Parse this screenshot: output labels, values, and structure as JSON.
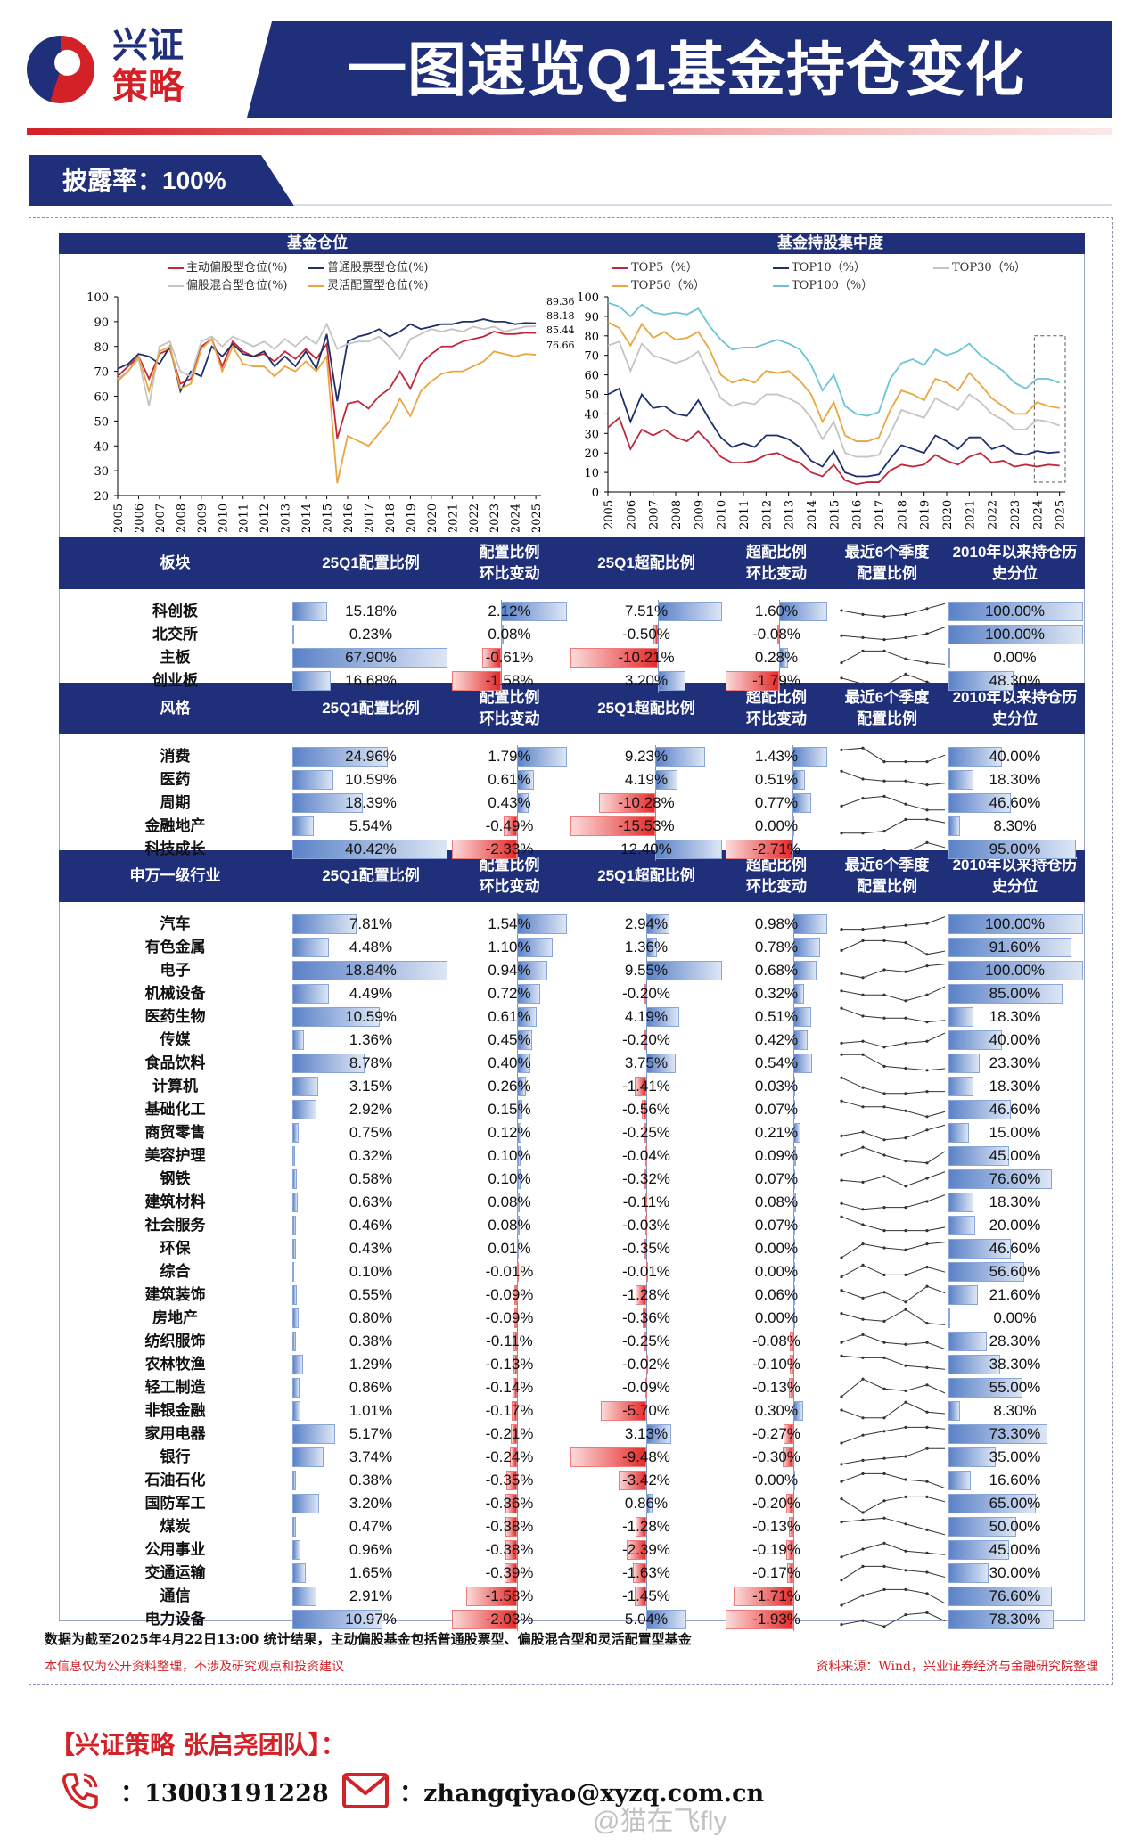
{
  "header": {
    "logo": [
      "兴证",
      "策略"
    ],
    "title": "一图速览Q1基金持仓变化",
    "disclosure": "披露率：100%"
  },
  "colors": {
    "navy": "#1f2f7a",
    "red": "#d42027",
    "pos_bar": "#5b82c8",
    "neg_bar": "#e52a2a"
  },
  "chart_data": [
    {
      "type": "line",
      "title": "基金仓位",
      "ylim": [
        20,
        100
      ],
      "yticks": [
        20,
        30,
        40,
        50,
        60,
        70,
        80,
        90,
        100
      ],
      "xticks": [
        "2005",
        "2006",
        "2007",
        "2008",
        "2009",
        "2010",
        "2011",
        "2012",
        "2013",
        "2014",
        "2015",
        "2016",
        "2017",
        "2018",
        "2019",
        "2020",
        "2021",
        "2022",
        "2023",
        "2024",
        "2025"
      ],
      "x_step": "half-year from 2005",
      "series": [
        {
          "name": "主动偏股型仓位(%)",
          "color": "#c0283a",
          "end_label": "85.44",
          "values": [
            68,
            72,
            76,
            67,
            77,
            79,
            65,
            67,
            80,
            83,
            72,
            82,
            78,
            76,
            77,
            74,
            78,
            75,
            79,
            75,
            81,
            43,
            57,
            58,
            55,
            60,
            63,
            70,
            63,
            73,
            77,
            80,
            80,
            82,
            83,
            84,
            86,
            85,
            85,
            85.5,
            85.44
          ]
        },
        {
          "name": "普通股票型仓位(%)",
          "color": "#1f2f6a",
          "end_label": "89.36",
          "values": [
            71,
            73,
            77,
            76,
            73,
            80,
            62,
            70,
            68,
            80,
            76,
            81,
            77,
            76,
            78,
            72,
            76,
            72,
            78,
            71,
            85,
            58,
            82,
            84,
            85,
            87,
            84,
            86,
            89,
            87,
            88,
            89,
            89,
            90,
            90,
            91,
            90,
            90,
            89,
            89.5,
            89.36
          ]
        },
        {
          "name": "偏股混合型仓位(%)",
          "color": "#c4c4c4",
          "end_label": "88.18",
          "values": [
            67,
            70,
            75,
            56,
            80,
            82,
            70,
            68,
            82,
            84,
            80,
            84,
            82,
            80,
            82,
            79,
            83,
            80,
            84,
            81,
            89,
            79,
            81,
            82,
            82,
            84,
            80,
            75,
            83,
            85,
            87,
            86,
            87,
            86,
            88,
            87,
            88,
            86,
            87,
            88,
            88.18
          ]
        },
        {
          "name": "灵活配置型仓位(%)",
          "color": "#e8a640",
          "end_label": "76.66",
          "values": [
            66,
            70,
            76,
            62,
            78,
            80,
            63,
            65,
            79,
            83,
            70,
            80,
            73,
            72,
            72,
            68,
            72,
            70,
            74,
            70,
            76,
            25,
            44,
            42,
            40,
            45,
            50,
            59,
            52,
            62,
            66,
            69,
            70,
            70,
            72,
            74,
            78,
            77,
            76,
            77,
            76.66
          ]
        }
      ]
    },
    {
      "type": "line",
      "title": "基金持股集中度",
      "ylim": [
        0,
        100
      ],
      "yticks": [
        0,
        10,
        20,
        30,
        40,
        50,
        60,
        70,
        80,
        90,
        100
      ],
      "xticks": [
        "2005",
        "2006",
        "2007",
        "2008",
        "2009",
        "2010",
        "2011",
        "2012",
        "2013",
        "2014",
        "2015",
        "2016",
        "2017",
        "2018",
        "2019",
        "2020",
        "2021",
        "2022",
        "2023",
        "2024",
        "2025"
      ],
      "x_step": "half-year from 2005",
      "highlight": "2024-2025",
      "series": [
        {
          "name": "TOP5（%）",
          "color": "#c0283a",
          "values": [
            33,
            38,
            22,
            32,
            29,
            32,
            28,
            26,
            31,
            25,
            18,
            15,
            15,
            16,
            19,
            20,
            17,
            15,
            10,
            8,
            14,
            6,
            4,
            5,
            5,
            11,
            14,
            13,
            14,
            19,
            16,
            14,
            18,
            20,
            15,
            16,
            13,
            14,
            13,
            14,
            13.5
          ]
        },
        {
          "name": "TOP10（%）",
          "color": "#1f2f6a",
          "values": [
            50,
            53,
            36,
            50,
            43,
            44,
            40,
            39,
            47,
            37,
            28,
            23,
            25,
            23,
            29,
            29,
            27,
            23,
            16,
            13,
            21,
            10,
            8,
            8,
            9,
            17,
            24,
            22,
            20,
            29,
            26,
            22,
            28,
            28,
            22,
            24,
            20,
            19,
            21,
            20,
            20.5
          ]
        },
        {
          "name": "TOP30（%）",
          "color": "#c4c4c4",
          "values": [
            75,
            77,
            62,
            76,
            70,
            68,
            66,
            68,
            72,
            60,
            48,
            44,
            46,
            45,
            50,
            50,
            48,
            45,
            38,
            27,
            36,
            20,
            18,
            18,
            19,
            30,
            42,
            40,
            38,
            48,
            45,
            42,
            50,
            46,
            40,
            37,
            32,
            32,
            37,
            36,
            34
          ]
        },
        {
          "name": "TOP50（%）",
          "color": "#e8a640",
          "values": [
            87,
            84,
            75,
            86,
            79,
            82,
            78,
            79,
            82,
            73,
            60,
            56,
            58,
            56,
            62,
            61,
            62,
            57,
            50,
            36,
            46,
            29,
            26,
            26,
            28,
            42,
            52,
            50,
            47,
            58,
            56,
            52,
            61,
            55,
            48,
            44,
            40,
            40,
            46,
            44,
            43
          ]
        },
        {
          "name": "TOP100（%）",
          "color": "#6cc3d6",
          "values": [
            97,
            95,
            90,
            96,
            92,
            91,
            92,
            91,
            94,
            85,
            78,
            73,
            74,
            74,
            76,
            78,
            76,
            73,
            65,
            52,
            60,
            44,
            40,
            39,
            41,
            58,
            66,
            68,
            65,
            73,
            70,
            72,
            76,
            70,
            66,
            62,
            56,
            53,
            58,
            58,
            56
          ]
        }
      ]
    }
  ],
  "columns": {
    "alloc": "25Q1配置比例",
    "alloc_chg": [
      "配置比例",
      "环比变动"
    ],
    "over": "25Q1超配比例",
    "over_chg": [
      "超配比例",
      "环比变动"
    ],
    "spark": [
      "最近6个季度",
      "配置比例"
    ],
    "pct": [
      "2010年以来持仓历",
      "史分位"
    ]
  },
  "tables": [
    {
      "head": "板块",
      "rows": [
        [
          "科创板",
          "15.18%",
          "2.12%",
          "7.51%",
          "1.60%",
          [
            5,
            3,
            2,
            3,
            6,
            9
          ],
          "100.00%"
        ],
        [
          "北交所",
          "0.23%",
          "0.08%",
          "-0.50%",
          "-0.08%",
          [
            4,
            3,
            2,
            3,
            5,
            9
          ],
          "100.00%"
        ],
        [
          "主板",
          "67.90%",
          "-0.61%",
          "-10.21%",
          "0.28%",
          [
            2,
            8,
            8,
            4,
            2,
            1
          ],
          "0.00%"
        ],
        [
          "创业板",
          "16.68%",
          "-1.58%",
          "3.20%",
          "-1.79%",
          [
            6,
            3,
            2,
            8,
            4,
            0
          ],
          "48.30%"
        ]
      ]
    },
    {
      "head": "风格",
      "rows": [
        [
          "消费",
          "24.96%",
          "1.79%",
          "9.23%",
          "1.43%",
          [
            8,
            9,
            2,
            2,
            2,
            6
          ],
          "40.00%"
        ],
        [
          "医药",
          "10.59%",
          "0.61%",
          "4.19%",
          "0.51%",
          [
            9,
            5,
            4,
            4,
            2,
            3
          ],
          "18.30%"
        ],
        [
          "周期",
          "18.39%",
          "0.43%",
          "-10.28%",
          "0.77%",
          [
            3,
            7,
            8,
            4,
            1,
            1
          ],
          "46.60%"
        ],
        [
          "金融地产",
          "5.54%",
          "-0.49%",
          "-15.53%",
          "0.00%",
          [
            1,
            1,
            2,
            8,
            8,
            6
          ],
          "8.30%"
        ],
        [
          "科技成长",
          "40.42%",
          "-2.33%",
          "12.40%",
          "-2.71%",
          [
            2,
            0,
            4,
            3,
            8,
            5
          ],
          "95.00%"
        ]
      ]
    },
    {
      "head": "申万一级行业",
      "rows": [
        [
          "汽车",
          "7.81%",
          "1.54%",
          "2.94%",
          "0.98%",
          [
            2,
            2,
            3,
            4,
            5,
            9
          ],
          "100.00%"
        ],
        [
          "有色金属",
          "4.48%",
          "1.10%",
          "1.36%",
          "0.78%",
          [
            3,
            8,
            8,
            7,
            1,
            3
          ],
          "91.60%"
        ],
        [
          "电子",
          "18.84%",
          "0.94%",
          "9.55%",
          "0.68%",
          [
            3,
            1,
            5,
            4,
            7,
            8
          ],
          "100.00%"
        ],
        [
          "机械设备",
          "4.49%",
          "0.72%",
          "-0.20%",
          "0.32%",
          [
            6,
            4,
            4,
            1,
            4,
            9
          ],
          "85.00%"
        ],
        [
          "医药生物",
          "10.59%",
          "0.61%",
          "4.19%",
          "0.51%",
          [
            9,
            5,
            4,
            4,
            2,
            3
          ],
          "18.30%"
        ],
        [
          "传媒",
          "1.36%",
          "0.45%",
          "-0.20%",
          "0.42%",
          [
            3,
            4,
            1,
            3,
            4,
            9
          ],
          "40.00%"
        ],
        [
          "食品饮料",
          "8.78%",
          "0.40%",
          "3.75%",
          "0.54%",
          [
            9,
            9,
            3,
            2,
            1,
            2
          ],
          "23.30%"
        ],
        [
          "计算机",
          "3.15%",
          "0.26%",
          "-1.41%",
          "0.03%",
          [
            9,
            4,
            1,
            1,
            2,
            2
          ],
          "18.30%"
        ],
        [
          "基础化工",
          "2.92%",
          "0.15%",
          "-0.56%",
          "0.07%",
          [
            9,
            6,
            6,
            4,
            1,
            4
          ],
          "46.60%"
        ],
        [
          "商贸零售",
          "0.75%",
          "0.12%",
          "-0.25%",
          "0.21%",
          [
            3,
            5,
            1,
            2,
            6,
            9
          ],
          "15.00%"
        ],
        [
          "美容护理",
          "0.32%",
          "0.10%",
          "-0.04%",
          "0.09%",
          [
            5,
            9,
            5,
            2,
            1,
            8
          ],
          "45.00%"
        ],
        [
          "钢铁",
          "0.58%",
          "0.10%",
          "-0.32%",
          "0.07%",
          [
            4,
            3,
            6,
            1,
            5,
            9
          ],
          "76.60%"
        ],
        [
          "建筑材料",
          "0.63%",
          "0.08%",
          "-0.11%",
          "0.08%",
          [
            4,
            1,
            2,
            2,
            5,
            9
          ],
          "18.30%"
        ],
        [
          "社会服务",
          "0.46%",
          "0.08%",
          "-0.03%",
          "0.07%",
          [
            9,
            5,
            2,
            2,
            2,
            4
          ],
          "20.00%"
        ],
        [
          "环保",
          "0.43%",
          "0.01%",
          "-0.35%",
          "0.00%",
          [
            0,
            7,
            5,
            4,
            7,
            8
          ],
          "46.60%"
        ],
        [
          "综合",
          "0.10%",
          "-0.01%",
          "-0.01%",
          "0.00%",
          [
            2,
            8,
            3,
            3,
            7,
            4
          ],
          "56.60%"
        ],
        [
          "建筑装饰",
          "0.55%",
          "-0.09%",
          "-1.28%",
          "0.06%",
          [
            7,
            3,
            6,
            1,
            9,
            5
          ],
          "21.60%"
        ],
        [
          "房地产",
          "0.80%",
          "-0.09%",
          "-0.36%",
          "0.00%",
          [
            7,
            4,
            3,
            9,
            2,
            1
          ],
          "0.00%"
        ],
        [
          "纺织服饰",
          "0.38%",
          "-0.11%",
          "-0.25%",
          "-0.08%",
          [
            4,
            8,
            4,
            3,
            4,
            0
          ],
          "28.30%"
        ],
        [
          "农林牧渔",
          "1.29%",
          "-0.13%",
          "-0.02%",
          "-0.10%",
          [
            9,
            8,
            8,
            4,
            3,
            2
          ],
          "38.30%"
        ],
        [
          "轻工制造",
          "0.86%",
          "-0.14%",
          "-0.09%",
          "-0.13%",
          [
            0,
            9,
            4,
            3,
            6,
            1
          ],
          "55.00%"
        ],
        [
          "非银金融",
          "1.01%",
          "-0.17%",
          "-5.70%",
          "0.30%",
          [
            5,
            1,
            1,
            9,
            4,
            3
          ],
          "8.30%"
        ],
        [
          "家用电器",
          "5.17%",
          "-0.21%",
          "3.13%",
          "-0.27%",
          [
            0,
            4,
            6,
            8,
            8,
            7
          ],
          "73.30%"
        ],
        [
          "银行",
          "3.74%",
          "-0.24%",
          "-9.48%",
          "-0.30%",
          [
            1,
            3,
            4,
            5,
            9,
            9
          ],
          "35.00%"
        ],
        [
          "石油石化",
          "0.38%",
          "-0.35%",
          "-3.42%",
          "0.00%",
          [
            4,
            8,
            8,
            5,
            4,
            0
          ],
          "16.60%"
        ],
        [
          "国防军工",
          "3.20%",
          "-0.36%",
          "0.86%",
          "-0.20%",
          [
            7,
            0,
            6,
            8,
            8,
            5
          ],
          "65.00%"
        ],
        [
          "煤炭",
          "0.47%",
          "-0.38%",
          "-1.28%",
          "-0.13%",
          [
            7,
            8,
            9,
            6,
            3,
            0
          ],
          "50.00%"
        ],
        [
          "公用事业",
          "0.96%",
          "-0.38%",
          "-2.39%",
          "-0.19%",
          [
            1,
            5,
            8,
            4,
            3,
            2
          ],
          "45.00%"
        ],
        [
          "交通运输",
          "1.65%",
          "-0.39%",
          "-1.63%",
          "-0.17%",
          [
            1,
            8,
            8,
            6,
            5,
            2
          ],
          "30.00%"
        ],
        [
          "通信",
          "2.91%",
          "-1.58%",
          "-1.45%",
          "-1.71%",
          [
            0,
            5,
            8,
            8,
            6,
            0
          ],
          "76.60%"
        ],
        [
          "电力设备",
          "10.97%",
          "-2.03%",
          "5.04%",
          "-1.93%",
          [
            2,
            4,
            1,
            7,
            8,
            3
          ],
          "78.30%"
        ]
      ]
    }
  ],
  "notes": {
    "data": "数据为截至2025年4月22日13:00 统计结果，主动偏股基金包括普通股票型、偏股混合型和灵活配置型基金",
    "disclaimer": "本信息仅为公开资料整理，不涉及研究观点和投资建议",
    "source": "资料来源：Wind，兴业证券经济与金融研究院整理"
  },
  "contact": {
    "team": "【兴证策略 张启尧团队】：",
    "phone": "：13003191228",
    "email": "：zhangqiyao@xyzq.com.cn",
    "watermark": "@猫在飞fly"
  }
}
